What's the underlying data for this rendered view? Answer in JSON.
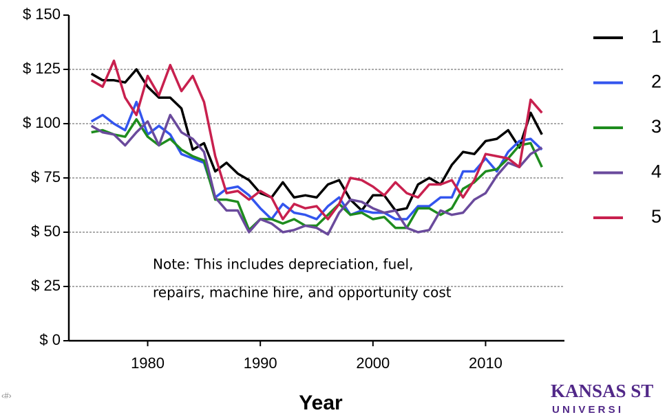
{
  "chart_data": {
    "type": "line",
    "x_label": "Year",
    "notes": [
      "Note: This includes depreciation, fuel,",
      "repairs, machine hire, and opportunity cost"
    ],
    "x": [
      1975,
      1976,
      1977,
      1978,
      1979,
      1980,
      1981,
      1982,
      1983,
      1984,
      1985,
      1986,
      1987,
      1988,
      1989,
      1990,
      1991,
      1992,
      1993,
      1994,
      1995,
      1996,
      1997,
      1998,
      1999,
      2000,
      2001,
      2002,
      2003,
      2004,
      2005,
      2006,
      2007,
      2008,
      2009,
      2010,
      2011,
      2012,
      2013,
      2014,
      2015
    ],
    "series": [
      {
        "name": "1",
        "color": "#000000",
        "values": [
          123,
          120,
          120,
          119,
          125,
          117,
          112,
          112,
          107,
          88,
          91,
          78,
          82,
          77,
          74,
          68,
          66,
          73,
          66,
          67,
          66,
          72,
          74,
          65,
          60,
          67,
          67,
          60,
          61,
          72,
          75,
          72,
          81,
          87,
          86,
          92,
          93,
          97,
          89,
          105,
          95
        ]
      },
      {
        "name": "2",
        "color": "#3355ee",
        "values": [
          101,
          104,
          100,
          97,
          110,
          95,
          99,
          95,
          86,
          84,
          82,
          66,
          70,
          71,
          67,
          61,
          56,
          63,
          59,
          58,
          56,
          62,
          66,
          58,
          60,
          59,
          59,
          56,
          56,
          62,
          62,
          66,
          66,
          78,
          78,
          84,
          78,
          87,
          92,
          93,
          88
        ]
      },
      {
        "name": "3",
        "color": "#1e8c1e",
        "values": [
          96,
          97,
          95,
          94,
          102,
          94,
          90,
          93,
          88,
          85,
          83,
          65,
          65,
          64,
          51,
          56,
          56,
          54,
          56,
          53,
          53,
          58,
          63,
          58,
          59,
          56,
          57,
          52,
          52,
          61,
          61,
          58,
          61,
          70,
          73,
          78,
          79,
          84,
          90,
          91,
          80
        ]
      },
      {
        "name": "4",
        "color": "#6a4a9c",
        "values": [
          99,
          96,
          95,
          90,
          96,
          101,
          90,
          104,
          96,
          93,
          87,
          66,
          60,
          60,
          50,
          56,
          54,
          50,
          51,
          53,
          52,
          49,
          59,
          65,
          64,
          61,
          59,
          60,
          52,
          50,
          51,
          60,
          58,
          59,
          65,
          68,
          76,
          82,
          80,
          86,
          89
        ]
      },
      {
        "name": "5",
        "color": "#c8204e",
        "values": [
          120,
          117,
          129,
          112,
          104,
          122,
          113,
          127,
          115,
          122,
          110,
          85,
          68,
          69,
          65,
          69,
          66,
          56,
          63,
          61,
          62,
          56,
          63,
          75,
          74,
          71,
          67,
          73,
          68,
          66,
          72,
          72,
          74,
          66,
          74,
          86,
          85,
          84,
          80,
          111,
          105
        ]
      }
    ],
    "xlim": [
      1973,
      2017
    ],
    "xticks": [
      1980,
      1990,
      2000,
      2010
    ],
    "ylim": [
      0,
      150
    ],
    "yticks": [
      {
        "value": 0,
        "label": "$ 0"
      },
      {
        "value": 25,
        "label": "$ 25"
      },
      {
        "value": 50,
        "label": "$ 50"
      },
      {
        "value": 75,
        "label": "$ 75"
      },
      {
        "value": 100,
        "label": "$ 100"
      },
      {
        "value": 125,
        "label": "$ 125"
      },
      {
        "value": 150,
        "label": "$ 150"
      }
    ],
    "grid": true,
    "legend": "right"
  },
  "slide_number": "‹#›",
  "logo": {
    "line1": "KANSAS ST",
    "line2": "U N I V E R S I"
  }
}
